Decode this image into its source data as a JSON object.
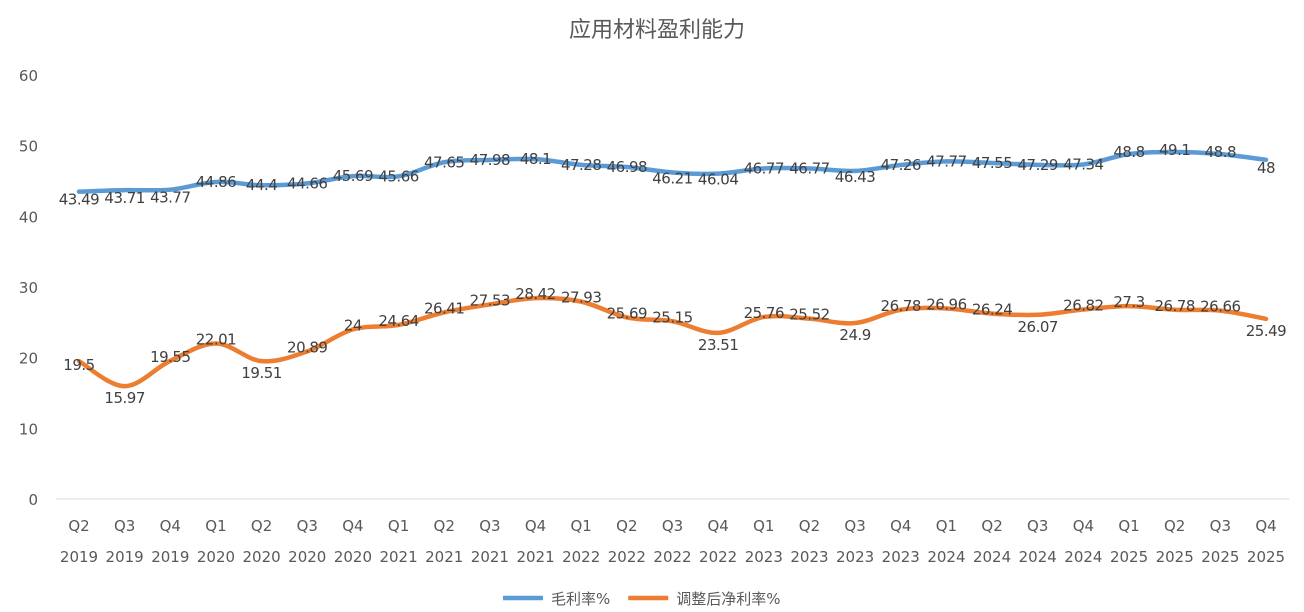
{
  "chart_data": {
    "type": "line",
    "title": "应用材料盈利能力",
    "categories": [
      [
        "Q2",
        "2019"
      ],
      [
        "Q3",
        "2019"
      ],
      [
        "Q4",
        "2019"
      ],
      [
        "Q1",
        "2020"
      ],
      [
        "Q2",
        "2020"
      ],
      [
        "Q3",
        "2020"
      ],
      [
        "Q4",
        "2020"
      ],
      [
        "Q1",
        "2021"
      ],
      [
        "Q2",
        "2021"
      ],
      [
        "Q3",
        "2021"
      ],
      [
        "Q4",
        "2021"
      ],
      [
        "Q1",
        "2022"
      ],
      [
        "Q2",
        "2022"
      ],
      [
        "Q3",
        "2022"
      ],
      [
        "Q4",
        "2022"
      ],
      [
        "Q1",
        "2023"
      ],
      [
        "Q2",
        "2023"
      ],
      [
        "Q3",
        "2023"
      ],
      [
        "Q4",
        "2023"
      ],
      [
        "Q1",
        "2024"
      ],
      [
        "Q2",
        "2024"
      ],
      [
        "Q3",
        "2024"
      ],
      [
        "Q4",
        "2024"
      ],
      [
        "Q1",
        "2025"
      ],
      [
        "Q2",
        "2025"
      ],
      [
        "Q3",
        "2025"
      ],
      [
        "Q4",
        "2025"
      ]
    ],
    "series": [
      {
        "name": "毛利率%",
        "color": "#5B9BD5",
        "values": [
          43.49,
          43.71,
          43.77,
          44.86,
          44.4,
          44.66,
          45.69,
          45.66,
          47.65,
          47.98,
          48.1,
          47.28,
          46.98,
          46.21,
          46.04,
          46.77,
          46.77,
          46.43,
          47.26,
          47.77,
          47.55,
          47.29,
          47.34,
          48.8,
          49.1,
          48.8,
          48
        ]
      },
      {
        "name": "调整后净利率%",
        "color": "#ED7D31",
        "values": [
          19.5,
          15.97,
          19.55,
          22.01,
          19.51,
          20.89,
          24,
          24.64,
          26.41,
          27.53,
          28.42,
          27.93,
          25.69,
          25.15,
          23.51,
          25.76,
          25.52,
          24.9,
          26.78,
          26.96,
          26.24,
          26.07,
          26.82,
          27.3,
          26.78,
          26.66,
          25.49
        ]
      }
    ],
    "ylim": [
      0,
      60
    ],
    "yticks": [
      0,
      10,
      20,
      30,
      40,
      50,
      60
    ],
    "grid": false,
    "smooth": true,
    "data_labels": true,
    "legend_position": "bottom"
  }
}
